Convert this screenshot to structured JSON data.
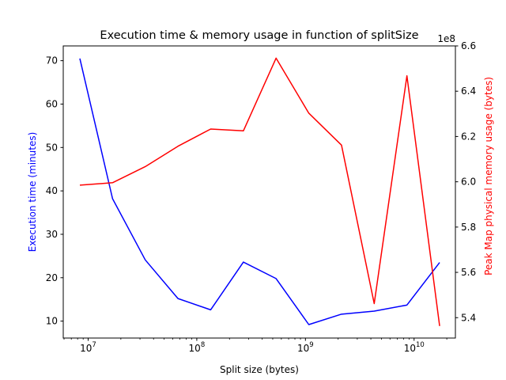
{
  "chart_data": {
    "type": "line",
    "title": "Execution time & memory usage in function of splitSize",
    "xlabel": "Split size (bytes)",
    "xscale": "log",
    "xlim": [
      5900000.0,
      24000000000.0
    ],
    "x_ticks": [
      {
        "value": 10000000.0,
        "base": "10",
        "exp": "7"
      },
      {
        "value": 100000000.0,
        "base": "10",
        "exp": "8"
      },
      {
        "value": 1000000000.0,
        "base": "10",
        "exp": "9"
      },
      {
        "value": 10000000000.0,
        "base": "10",
        "exp": "10"
      }
    ],
    "x": [
      8388608,
      16777216,
      33554432,
      67108864,
      134217728,
      268435456,
      536870912,
      1073741824,
      2147483648,
      4294967296,
      8589934592,
      17179869184
    ],
    "left_axis": {
      "label": "Execution time (minutes)",
      "color": "#0000ff",
      "ylim": [
        6.1,
        73.4
      ],
      "ticks": [
        "10",
        "20",
        "30",
        "40",
        "50",
        "60",
        "70"
      ]
    },
    "right_axis": {
      "label": "Peak Map physical memory usage (bytes)",
      "color": "#ff0000",
      "ylim": [
        531000000.0,
        660000000.0
      ],
      "ticks": [
        "5.4",
        "5.6",
        "5.8",
        "6.0",
        "6.2",
        "6.4",
        "6.6"
      ],
      "offset_text": "1e8"
    },
    "series": [
      {
        "axis": "left",
        "color": "#0000ff",
        "values": [
          70.5,
          38.2,
          24.1,
          15.2,
          12.6,
          23.6,
          19.8,
          9.2,
          11.6,
          12.3,
          13.7,
          23.5
        ]
      },
      {
        "axis": "right",
        "color": "#ff0000",
        "values": [
          598500000.0,
          599600000.0,
          606700000.0,
          615700000.0,
          623300000.0,
          622500000.0,
          654600000.0,
          630300000.0,
          616200000.0,
          546200000.0,
          646800000.0,
          536300000.0
        ]
      }
    ]
  }
}
